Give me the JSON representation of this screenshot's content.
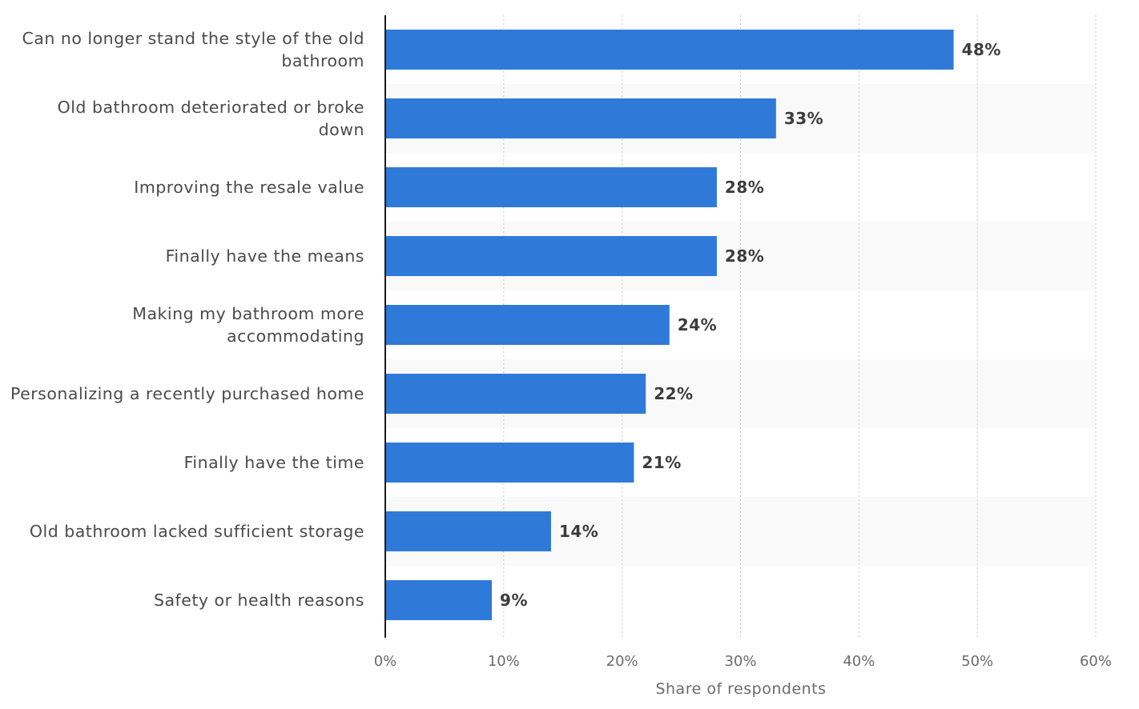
{
  "chart_data": {
    "type": "bar",
    "orientation": "horizontal",
    "categories": [
      [
        "Can no longer stand the style of the old",
        "bathroom"
      ],
      [
        "Old bathroom deteriorated or broke",
        "down"
      ],
      [
        "Improving the resale value"
      ],
      [
        "Finally have the means"
      ],
      [
        "Making my bathroom more",
        "accommodating"
      ],
      [
        "Personalizing a recently purchased home"
      ],
      [
        "Finally have the time"
      ],
      [
        "Old bathroom lacked sufficient storage"
      ],
      [
        "Safety or health reasons"
      ]
    ],
    "values": [
      48,
      33,
      28,
      28,
      24,
      22,
      21,
      14,
      9
    ],
    "value_labels": [
      "48%",
      "33%",
      "28%",
      "28%",
      "24%",
      "22%",
      "21%",
      "14%",
      "9%"
    ],
    "xlabel": "Share of respondents",
    "xlim": [
      0,
      60
    ],
    "xticks": [
      0,
      10,
      20,
      30,
      40,
      50,
      60
    ],
    "xtick_labels": [
      "0%",
      "10%",
      "20%",
      "30%",
      "40%",
      "50%",
      "60%"
    ],
    "grid": "vertical-dotted",
    "bar_color": "#2f7ad9",
    "band_color": "#f9f9f9"
  }
}
